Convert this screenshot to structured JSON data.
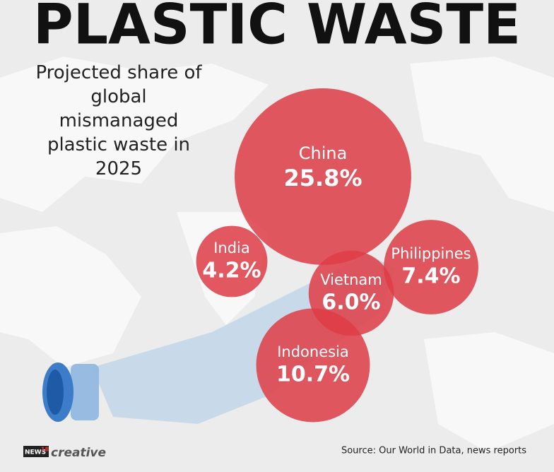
{
  "chart_data": {
    "type": "bubble",
    "title": "PLASTIC WASTE",
    "subtitle": "Projected share of global mismanaged plastic waste in 2025",
    "categories": [
      "China",
      "India",
      "Philippines",
      "Vietnam",
      "Indonesia"
    ],
    "values": [
      25.8,
      4.2,
      7.4,
      6.0,
      10.7
    ],
    "value_labels": [
      "25.8%",
      "4.2%",
      "7.4%",
      "6.0%",
      "10.7%"
    ],
    "color": "#de3c45",
    "source": "Source: Our World in Data, news reports",
    "logo": [
      "NEWS",
      "18",
      "creative"
    ]
  }
}
